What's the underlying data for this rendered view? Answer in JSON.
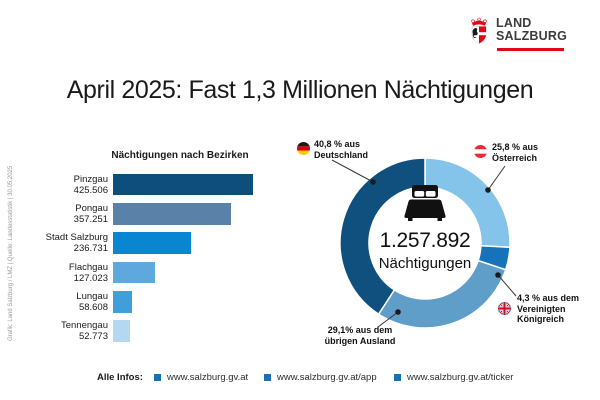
{
  "brand": {
    "name_line1": "LAND",
    "name_line2": "SALZBURG"
  },
  "title": "April 2025: Fast 1,3 Millionen Nächtigungen",
  "credit": "Grafik: Land Salzburg / LMZ  |  Quelle: Landesstatistik  |  30.05.2025",
  "colors": {
    "accent_red": "#e30613",
    "text": "#1d1d1b",
    "footer_bullet": "#1a70b4"
  },
  "chart_data": [
    {
      "type": "bar",
      "title": "Nächtigungen nach Bezirken",
      "orientation": "horizontal",
      "categories": [
        "Pinzgau",
        "Pongau",
        "Stadt Salzburg",
        "Flachgau",
        "Lungau",
        "Tennengau"
      ],
      "values": [
        425506,
        357251,
        236731,
        127023,
        58608,
        52773
      ],
      "value_labels": [
        "425.506",
        "357.251",
        "236.731",
        "127.023",
        "58.608",
        "52.773"
      ],
      "bar_colors": [
        "#0d4e7d",
        "#5a82a8",
        "#0986d2",
        "#5fa8dd",
        "#3f9fdb",
        "#b5d8f2"
      ],
      "xlim": [
        0,
        425506
      ],
      "grid": false,
      "legend": false
    },
    {
      "type": "donut",
      "center_value": "1.257.892",
      "center_label": "Nächtigungen",
      "start_angle_deg": 0,
      "segments": [
        {
          "id": "oesterreich",
          "pct": 25.8,
          "color": "#84c3ea",
          "flag": "austria",
          "lines": [
            "25,8 % aus",
            "Österreich"
          ]
        },
        {
          "id": "vereinigtes-koenigreich",
          "pct": 4.3,
          "color": "#1673b9",
          "flag": "uk",
          "lines": [
            "4,3 % aus dem",
            "Vereinigten",
            "Königreich"
          ]
        },
        {
          "id": "uebriges-ausland",
          "pct": 29.1,
          "color": "#5f9ec9",
          "flag": null,
          "lines": [
            "29,1% aus dem",
            "übrigen Ausland"
          ]
        },
        {
          "id": "deutschland",
          "pct": 40.8,
          "color": "#0f507f",
          "flag": "germany",
          "lines": [
            "40,8 % aus",
            "Deutschland"
          ]
        }
      ]
    }
  ],
  "footer": {
    "label": "Alle Infos:",
    "links": [
      "www.salzburg.gv.at",
      "www.salzburg.gv.at/app",
      "www.salzburg.gv.at/ticker"
    ]
  }
}
